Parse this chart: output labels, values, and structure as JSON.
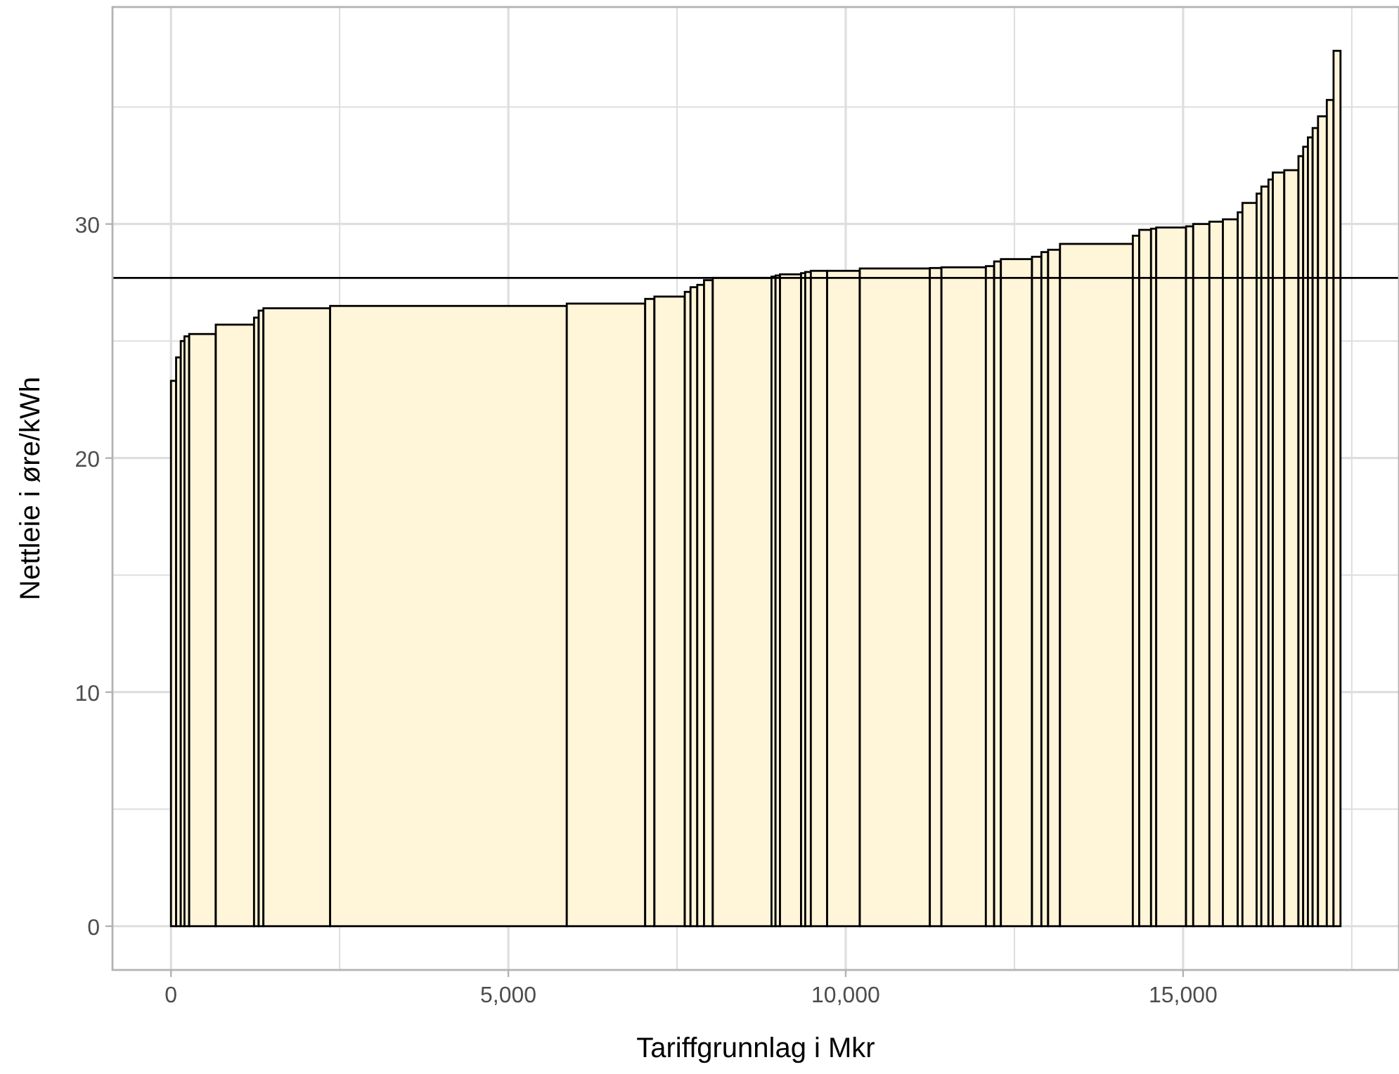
{
  "chart_data": {
    "type": "histogram",
    "xlabel": "Tariffgrunnlag i Mkr",
    "ylabel": "Nettleie i øre/kWh",
    "bins": [
      0,
      76,
      145,
      200,
      270,
      664,
      1231,
      1300,
      1370,
      2359,
      5866,
      7028,
      7165,
      7615,
      7700,
      7800,
      7900,
      8030,
      8900,
      8960,
      9026,
      9338,
      9400,
      9483,
      9725,
      10209,
      11247,
      11419,
      12077,
      12200,
      12300,
      12761,
      12900,
      13000,
      13176,
      14255,
      14350,
      14525,
      14602,
      15044,
      15150,
      15390,
      15590,
      15810,
      15880,
      16090,
      16160,
      16265,
      16330,
      16500,
      16710,
      16780,
      16850,
      16920,
      17000,
      17130,
      17230,
      17333
    ],
    "values": [
      23.3,
      24.3,
      25.0,
      25.2,
      25.3,
      25.7,
      26.0,
      26.3,
      26.4,
      26.5,
      26.6,
      26.8,
      26.9,
      27.1,
      27.3,
      27.4,
      27.6,
      27.7,
      27.75,
      27.8,
      27.85,
      27.9,
      27.95,
      28.0,
      28.0,
      28.1,
      28.12,
      28.15,
      28.2,
      28.4,
      28.5,
      28.6,
      28.8,
      28.9,
      29.15,
      29.5,
      29.75,
      29.8,
      29.85,
      29.9,
      30.0,
      30.1,
      30.2,
      30.5,
      30.9,
      31.3,
      31.6,
      31.9,
      32.2,
      32.3,
      32.9,
      33.3,
      33.7,
      34.1,
      34.6,
      35.3,
      37.4
    ],
    "color": "#fff5d9",
    "xlim": [
      -867,
      18200
    ],
    "ylim": [
      -1.87,
      39.27
    ],
    "xticks": [
      {
        "value": 0,
        "label": "0"
      },
      {
        "value": 2500,
        "label": null
      },
      {
        "value": 5000,
        "label": "5,000"
      },
      {
        "value": 7500,
        "label": null
      },
      {
        "value": 10000,
        "label": "10,000"
      },
      {
        "value": 12500,
        "label": null
      },
      {
        "value": 15000,
        "label": "15,000"
      },
      {
        "value": 17500,
        "label": null
      }
    ],
    "yticks": [
      0,
      {
        "value": 5,
        "label": null
      },
      10,
      {
        "value": 15,
        "label": null
      },
      20,
      {
        "value": 25,
        "label": null
      },
      30,
      {
        "value": 35,
        "label": null
      }
    ],
    "grid": true,
    "ref_lines": [
      {
        "axis": "y",
        "value": 27.7,
        "color": "#000000"
      }
    ]
  }
}
